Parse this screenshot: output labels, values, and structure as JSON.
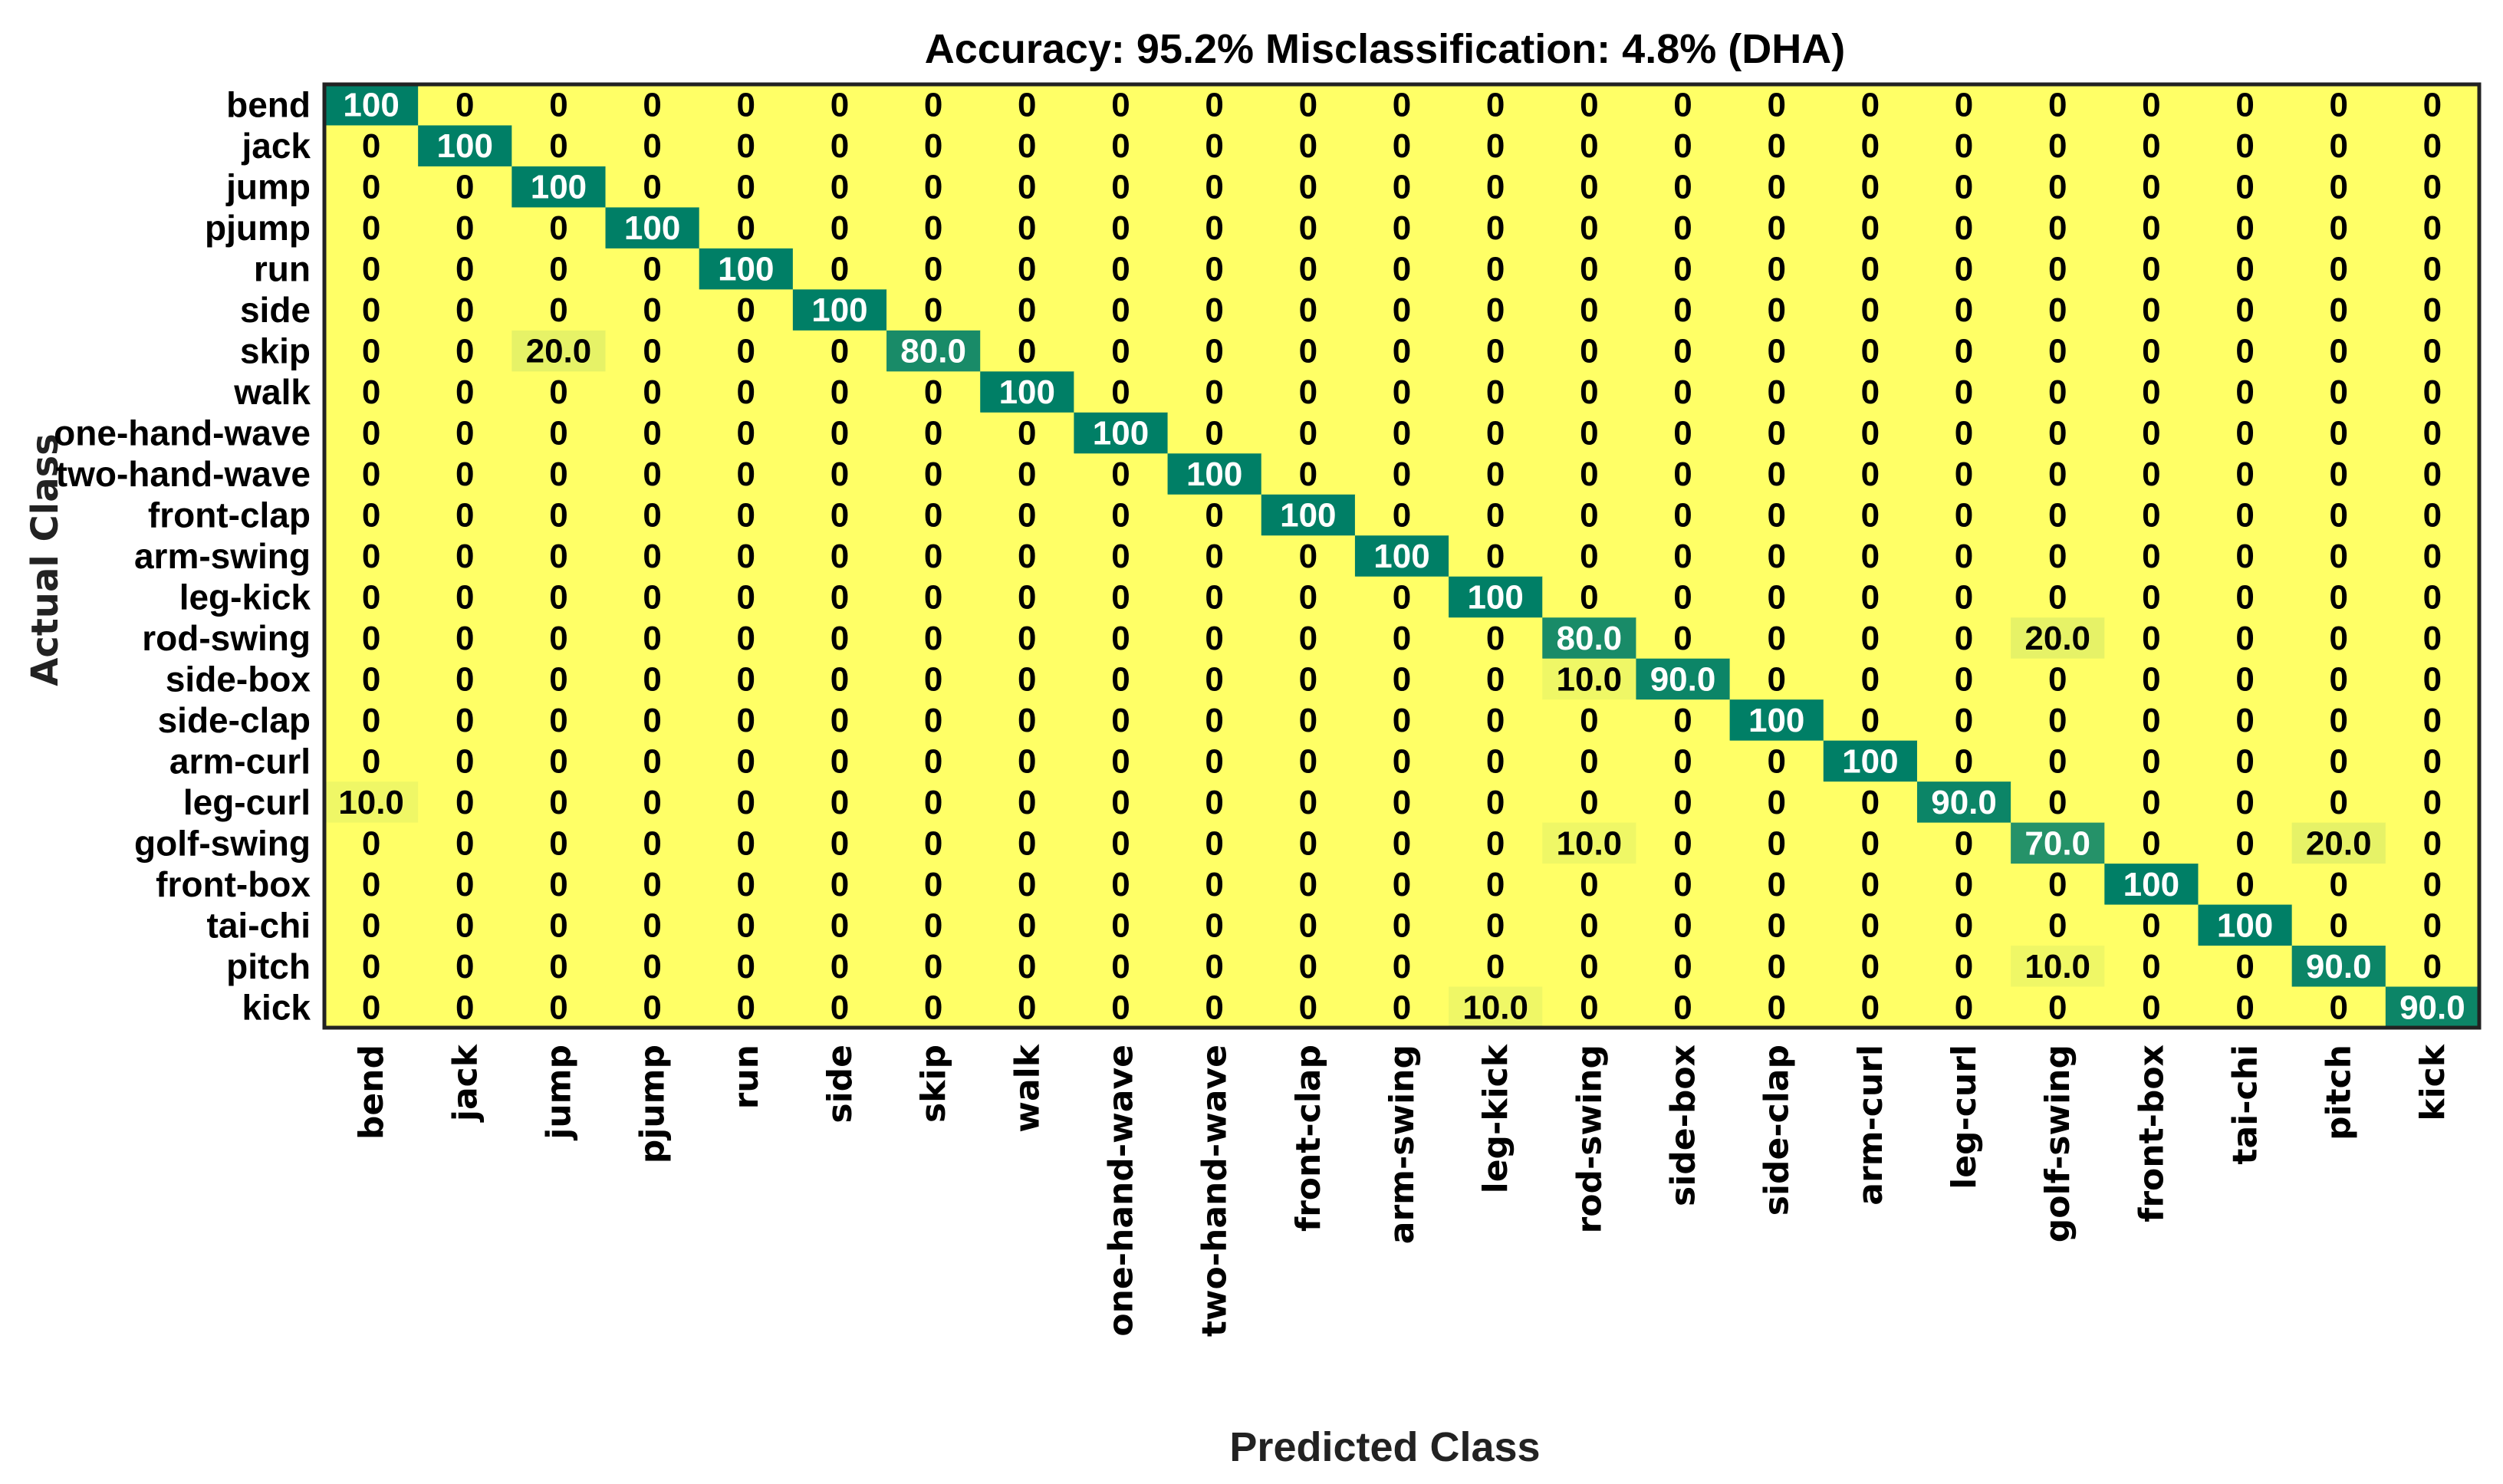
{
  "chart_data": {
    "type": "heatmap",
    "title": "Accuracy: 95.2%  Misclassification: 4.8% (DHA)",
    "xlabel": "Predicted Class",
    "ylabel": "Actual Class",
    "classes": [
      "bend",
      "jack",
      "jump",
      "pjump",
      "run",
      "side",
      "skip",
      "walk",
      "one-hand-wave",
      "two-hand-wave",
      "front-clap",
      "arm-swing",
      "leg-kick",
      "rod-swing",
      "side-box",
      "side-clap",
      "arm-curl",
      "leg-curl",
      "golf-swing",
      "front-box",
      "tai-chi",
      "pitch",
      "kick"
    ],
    "cell_labels": [
      [
        "100",
        "0",
        "0",
        "0",
        "0",
        "0",
        "0",
        "0",
        "0",
        "0",
        "0",
        "0",
        "0",
        "0",
        "0",
        "0",
        "0",
        "0",
        "0",
        "0",
        "0",
        "0",
        "0"
      ],
      [
        "0",
        "100",
        "0",
        "0",
        "0",
        "0",
        "0",
        "0",
        "0",
        "0",
        "0",
        "0",
        "0",
        "0",
        "0",
        "0",
        "0",
        "0",
        "0",
        "0",
        "0",
        "0",
        "0"
      ],
      [
        "0",
        "0",
        "100",
        "0",
        "0",
        "0",
        "0",
        "0",
        "0",
        "0",
        "0",
        "0",
        "0",
        "0",
        "0",
        "0",
        "0",
        "0",
        "0",
        "0",
        "0",
        "0",
        "0"
      ],
      [
        "0",
        "0",
        "0",
        "100",
        "0",
        "0",
        "0",
        "0",
        "0",
        "0",
        "0",
        "0",
        "0",
        "0",
        "0",
        "0",
        "0",
        "0",
        "0",
        "0",
        "0",
        "0",
        "0"
      ],
      [
        "0",
        "0",
        "0",
        "0",
        "100",
        "0",
        "0",
        "0",
        "0",
        "0",
        "0",
        "0",
        "0",
        "0",
        "0",
        "0",
        "0",
        "0",
        "0",
        "0",
        "0",
        "0",
        "0"
      ],
      [
        "0",
        "0",
        "0",
        "0",
        "0",
        "100",
        "0",
        "0",
        "0",
        "0",
        "0",
        "0",
        "0",
        "0",
        "0",
        "0",
        "0",
        "0",
        "0",
        "0",
        "0",
        "0",
        "0"
      ],
      [
        "0",
        "0",
        "20.0",
        "0",
        "0",
        "0",
        "80.0",
        "0",
        "0",
        "0",
        "0",
        "0",
        "0",
        "0",
        "0",
        "0",
        "0",
        "0",
        "0",
        "0",
        "0",
        "0",
        "0"
      ],
      [
        "0",
        "0",
        "0",
        "0",
        "0",
        "0",
        "0",
        "100",
        "0",
        "0",
        "0",
        "0",
        "0",
        "0",
        "0",
        "0",
        "0",
        "0",
        "0",
        "0",
        "0",
        "0",
        "0"
      ],
      [
        "0",
        "0",
        "0",
        "0",
        "0",
        "0",
        "0",
        "0",
        "100",
        "0",
        "0",
        "0",
        "0",
        "0",
        "0",
        "0",
        "0",
        "0",
        "0",
        "0",
        "0",
        "0",
        "0"
      ],
      [
        "0",
        "0",
        "0",
        "0",
        "0",
        "0",
        "0",
        "0",
        "0",
        "100",
        "0",
        "0",
        "0",
        "0",
        "0",
        "0",
        "0",
        "0",
        "0",
        "0",
        "0",
        "0",
        "0"
      ],
      [
        "0",
        "0",
        "0",
        "0",
        "0",
        "0",
        "0",
        "0",
        "0",
        "0",
        "100",
        "0",
        "0",
        "0",
        "0",
        "0",
        "0",
        "0",
        "0",
        "0",
        "0",
        "0",
        "0"
      ],
      [
        "0",
        "0",
        "0",
        "0",
        "0",
        "0",
        "0",
        "0",
        "0",
        "0",
        "0",
        "100",
        "0",
        "0",
        "0",
        "0",
        "0",
        "0",
        "0",
        "0",
        "0",
        "0",
        "0"
      ],
      [
        "0",
        "0",
        "0",
        "0",
        "0",
        "0",
        "0",
        "0",
        "0",
        "0",
        "0",
        "0",
        "100",
        "0",
        "0",
        "0",
        "0",
        "0",
        "0",
        "0",
        "0",
        "0",
        "0"
      ],
      [
        "0",
        "0",
        "0",
        "0",
        "0",
        "0",
        "0",
        "0",
        "0",
        "0",
        "0",
        "0",
        "0",
        "80.0",
        "0",
        "0",
        "0",
        "0",
        "20.0",
        "0",
        "0",
        "0",
        "0"
      ],
      [
        "0",
        "0",
        "0",
        "0",
        "0",
        "0",
        "0",
        "0",
        "0",
        "0",
        "0",
        "0",
        "0",
        "10.0",
        "90.0",
        "0",
        "0",
        "0",
        "0",
        "0",
        "0",
        "0",
        "0"
      ],
      [
        "0",
        "0",
        "0",
        "0",
        "0",
        "0",
        "0",
        "0",
        "0",
        "0",
        "0",
        "0",
        "0",
        "0",
        "0",
        "100",
        "0",
        "0",
        "0",
        "0",
        "0",
        "0",
        "0"
      ],
      [
        "0",
        "0",
        "0",
        "0",
        "0",
        "0",
        "0",
        "0",
        "0",
        "0",
        "0",
        "0",
        "0",
        "0",
        "0",
        "0",
        "100",
        "0",
        "0",
        "0",
        "0",
        "0",
        "0"
      ],
      [
        "10.0",
        "0",
        "0",
        "0",
        "0",
        "0",
        "0",
        "0",
        "0",
        "0",
        "0",
        "0",
        "0",
        "0",
        "0",
        "0",
        "0",
        "90.0",
        "0",
        "0",
        "0",
        "0",
        "0"
      ],
      [
        "0",
        "0",
        "0",
        "0",
        "0",
        "0",
        "0",
        "0",
        "0",
        "0",
        "0",
        "0",
        "0",
        "10.0",
        "0",
        "0",
        "0",
        "0",
        "70.0",
        "0",
        "0",
        "20.0",
        "0"
      ],
      [
        "0",
        "0",
        "0",
        "0",
        "0",
        "0",
        "0",
        "0",
        "0",
        "0",
        "0",
        "0",
        "0",
        "0",
        "0",
        "0",
        "0",
        "0",
        "0",
        "100",
        "0",
        "0",
        "0"
      ],
      [
        "0",
        "0",
        "0",
        "0",
        "0",
        "0",
        "0",
        "0",
        "0",
        "0",
        "0",
        "0",
        "0",
        "0",
        "0",
        "0",
        "0",
        "0",
        "0",
        "0",
        "100",
        "0",
        "0"
      ],
      [
        "0",
        "0",
        "0",
        "0",
        "0",
        "0",
        "0",
        "0",
        "0",
        "0",
        "0",
        "0",
        "0",
        "0",
        "0",
        "0",
        "0",
        "0",
        "10.0",
        "0",
        "0",
        "90.0",
        "0"
      ],
      [
        "0",
        "0",
        "0",
        "0",
        "0",
        "0",
        "0",
        "0",
        "0",
        "0",
        "0",
        "0",
        "10.0",
        "0",
        "0",
        "0",
        "0",
        "0",
        "0",
        "0",
        "0",
        "0",
        "90.0"
      ]
    ],
    "colormap": {
      "low": "#ffff66",
      "mid": "#3e9e6b",
      "high": "#007f66"
    },
    "vmin": 0,
    "vmax": 100,
    "grid": false
  }
}
